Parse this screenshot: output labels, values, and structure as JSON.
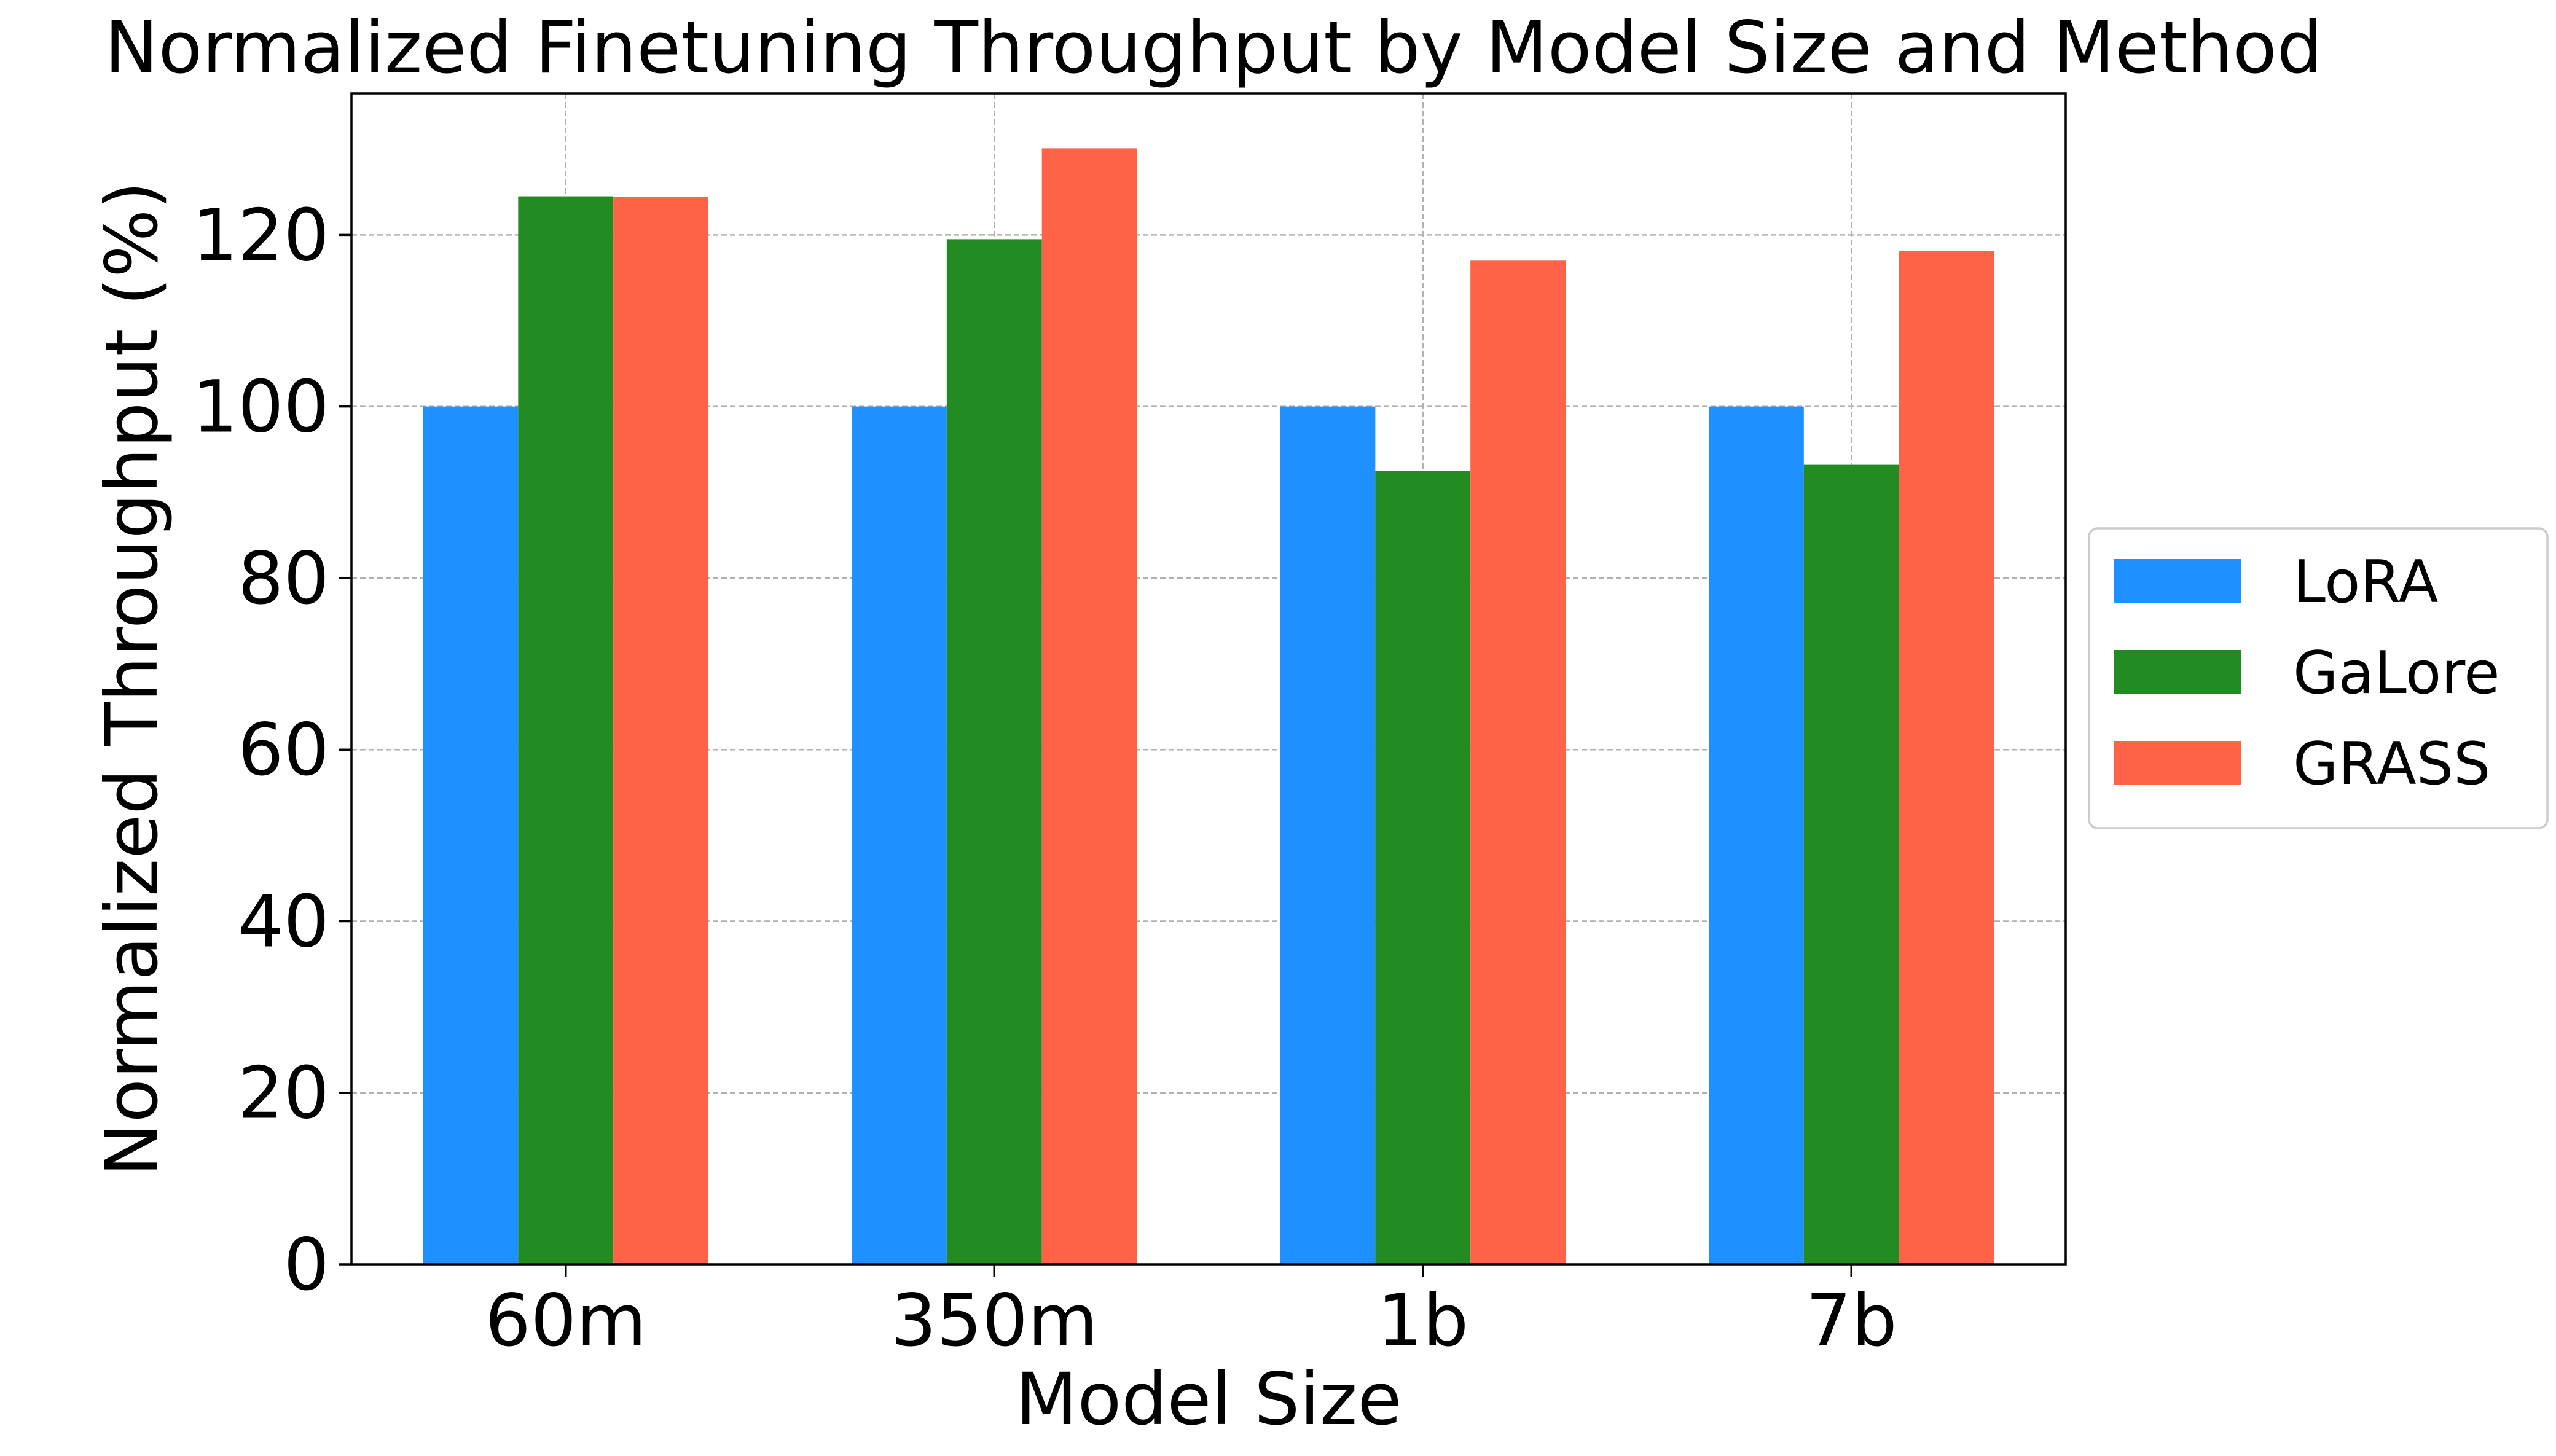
{
  "chart_data": {
    "type": "bar",
    "title": "Normalized Finetuning Throughput by Model Size and Method",
    "xlabel": "Model Size",
    "ylabel": "Normalized Throughput (%)",
    "categories": [
      "60m",
      "350m",
      "1b",
      "7b"
    ],
    "series": [
      {
        "name": "LoRA",
        "color": "#1e90ff",
        "values": [
          100,
          100,
          100,
          100
        ]
      },
      {
        "name": "GaLore",
        "color": "#228b22",
        "values": [
          124.5,
          119.5,
          92.5,
          93.2
        ]
      },
      {
        "name": "GRASS",
        "color": "#ff6347",
        "values": [
          124.4,
          130.1,
          117.0,
          118.1
        ]
      }
    ],
    "ylim": [
      0,
      136.5
    ],
    "yticks": [
      0,
      20,
      40,
      60,
      80,
      100,
      120
    ],
    "grid": true,
    "legend_position": "center-right"
  }
}
